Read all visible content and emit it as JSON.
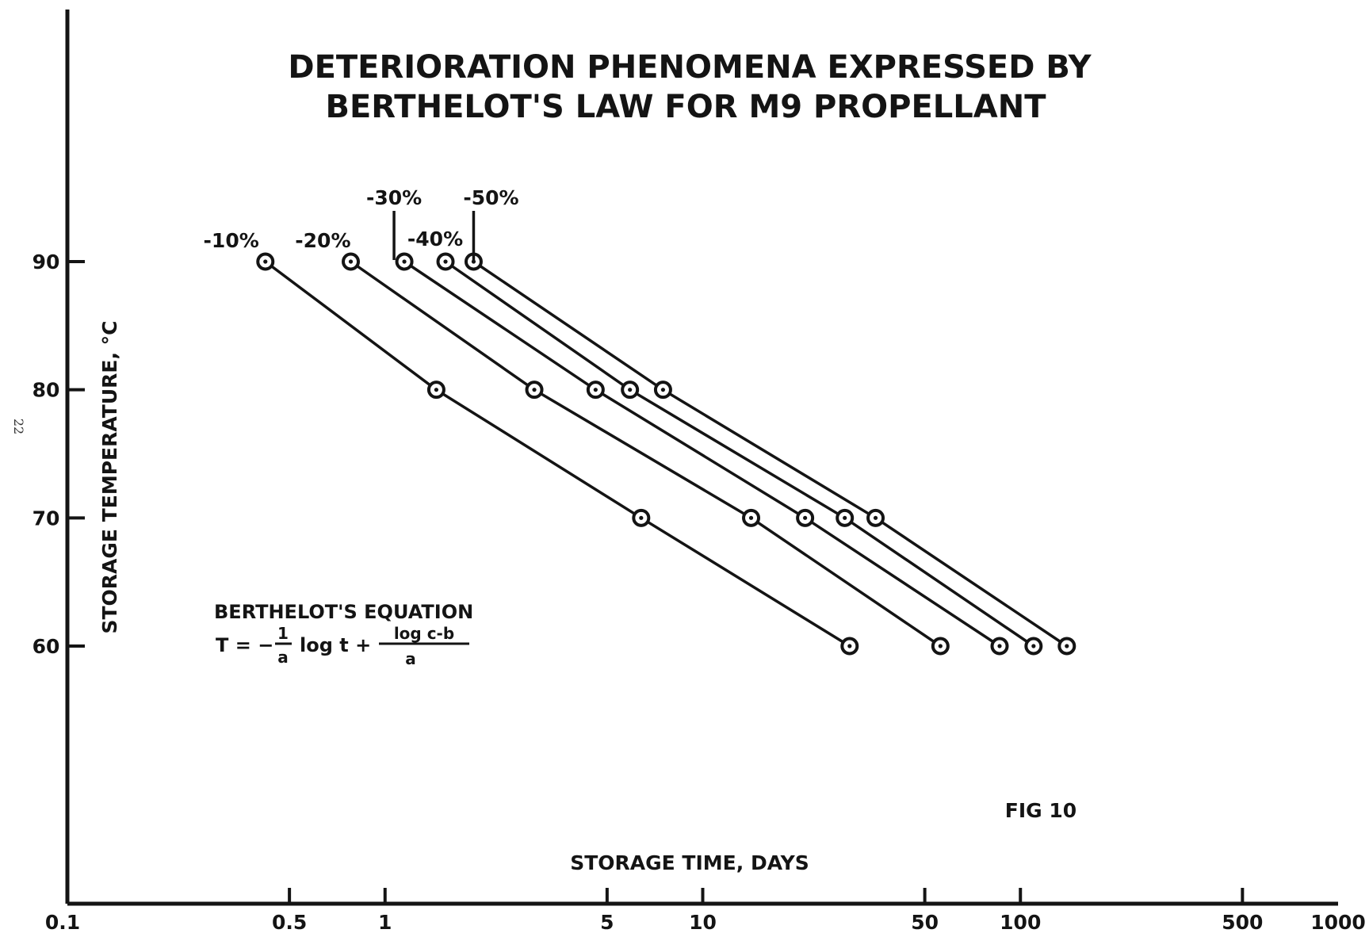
{
  "page_number": "22",
  "equation": {
    "heading": "BERTHELOT'S EQUATION",
    "lhs": "T = −",
    "frac1_num": "1",
    "frac1_den": "a",
    "mid": "log t +",
    "frac2_num": "log c-b",
    "frac2_den": "a"
  },
  "figure_label": "FIG 10",
  "colors": {
    "ink": "#141414",
    "background": "#ffffff"
  },
  "chart_data": {
    "type": "line",
    "title": "DETERIORATION PHENOMENA EXPRESSED BY BERTHELOT'S LAW FOR M9 PROPELLANT",
    "title_lines": [
      "DETERIORATION PHENOMENA EXPRESSED BY",
      "BERTHELOT'S LAW FOR M9 PROPELLANT"
    ],
    "xlabel": "STORAGE TIME, DAYS",
    "ylabel": "STORAGE TEMPERATURE, °C",
    "x_scale": "log",
    "xlim": [
      0.1,
      1000
    ],
    "ylim": [
      40,
      100
    ],
    "x_ticks": [
      0.1,
      0.5,
      1,
      5,
      10,
      50,
      100,
      500,
      1000
    ],
    "x_tick_labels": [
      "0.1",
      "0.5",
      "1",
      "5",
      "10",
      "50",
      "100",
      "500",
      "1000"
    ],
    "y_ticks": [
      60,
      70,
      80,
      90
    ],
    "y_tick_labels": [
      "60",
      "70",
      "80",
      "90"
    ],
    "grid": false,
    "marker": "circle-with-dot",
    "series": [
      {
        "name": "-10%",
        "x": [
          0.42,
          1.45,
          6.4,
          29
        ],
        "y": [
          90,
          80,
          70,
          60
        ]
      },
      {
        "name": "-20%",
        "x": [
          0.78,
          2.95,
          14.2,
          56
        ],
        "y": [
          90,
          80,
          70,
          60
        ]
      },
      {
        "name": "-30%",
        "x": [
          1.15,
          4.6,
          21,
          86
        ],
        "y": [
          90,
          80,
          70,
          60
        ]
      },
      {
        "name": "-40%",
        "x": [
          1.55,
          5.9,
          28,
          110
        ],
        "y": [
          90,
          80,
          70,
          60
        ]
      },
      {
        "name": "-50%",
        "x": [
          1.9,
          7.5,
          35,
          140
        ],
        "y": [
          90,
          80,
          70,
          60
        ]
      }
    ]
  }
}
